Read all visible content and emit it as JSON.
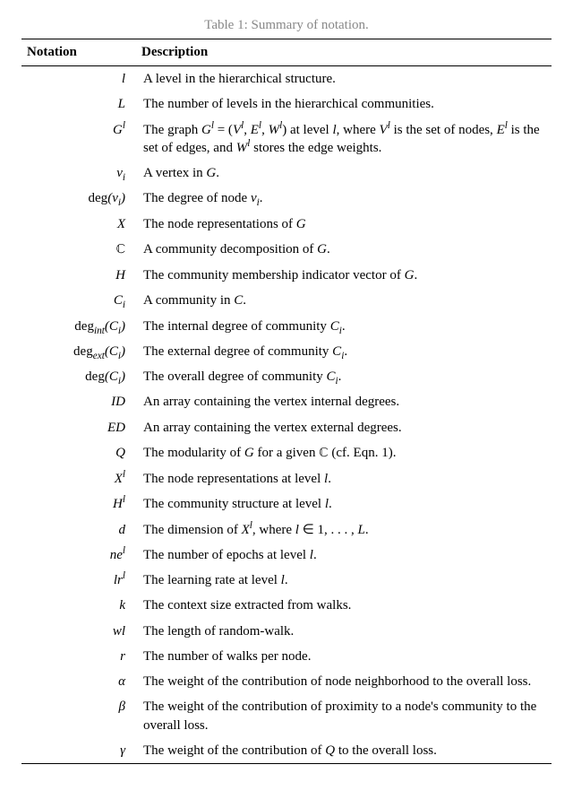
{
  "caption": "Table 1: Summary of notation.",
  "header": {
    "notation": "Notation",
    "description": "Description"
  },
  "rows": [
    {
      "n": "<span>l</span>",
      "d": "A level in the hierarchical structure."
    },
    {
      "n": "<span>L</span>",
      "d": "The number of levels in the hierarchical communities."
    },
    {
      "n": "<span>G<sup>l</sup></span>",
      "d": "The graph <i>G<sup>l</sup></i> = (<i>V<sup>l</sup></i>, <i>E<sup>l</sup></i>, <i>W<sup>l</sup></i>) at level <i>l</i>, where <i>V<sup>l</sup></i> is the set of nodes, <i>E<sup>l</sup></i> is the set of edges, and <i>W<sup>l</sup></i> stores the edge weights."
    },
    {
      "n": "<span>v<sub>i</sub></span>",
      "d": "A vertex in <i>G</i>."
    },
    {
      "n": "<span class=\"rm\">deg</span>(<span>v<sub>i</sub></span>)",
      "d": "The degree of node <i>v<sub>i</sub></i>."
    },
    {
      "n": "<span>X</span>",
      "d": "The node representations of <i>G</i>"
    },
    {
      "n": "<span class=\"bb\">ℂ</span>",
      "d": "A community decomposition of <i>G</i>."
    },
    {
      "n": "<span>H</span>",
      "d": "The community membership indicator vector of <i>G</i>."
    },
    {
      "n": "<span>C<sub>i</sub></span>",
      "d": "A community in <i>C</i>."
    },
    {
      "n": "<span class=\"rm\">deg</span><sub>int</sub>(<span>C<sub>i</sub></span>)",
      "d": "The internal degree of community <i>C<sub>i</sub></i>."
    },
    {
      "n": "<span class=\"rm\">deg</span><sub>ext</sub>(<span>C<sub>i</sub></span>)",
      "d": "The external degree of community <i>C<sub>i</sub></i>."
    },
    {
      "n": "<span class=\"rm\">deg</span>(<span>C<sub>i</sub></span>)",
      "d": "The overall degree of community <i>C<sub>i</sub></i>."
    },
    {
      "n": "<span>ID</span>",
      "d": "An array containing the vertex internal degrees."
    },
    {
      "n": "<span>ED</span>",
      "d": "An array containing the vertex external degrees."
    },
    {
      "n": "<span>Q</span>",
      "d": "The modularity of <i>G</i> for a given <span class=\"bb\">ℂ</span> (cf. Eqn. 1)."
    },
    {
      "n": "<span>X<sup>l</sup></span>",
      "d": "The node representations at level <i>l</i>."
    },
    {
      "n": "<span>H<sup>l</sup></span>",
      "d": "The community structure at level <i>l</i>."
    },
    {
      "n": "<span>d</span>",
      "d": "The dimension of <i>X<sup>l</sup></i>, where <i>l</i> ∈ 1, . . . , <i>L</i>."
    },
    {
      "n": "<span>ne<sup>l</sup></span>",
      "d": "The number of epochs at level <i>l</i>."
    },
    {
      "n": "<span>lr<sup>l</sup></span>",
      "d": "The learning rate at level <i>l</i>."
    },
    {
      "n": "<span>k</span>",
      "d": "The context size extracted from walks."
    },
    {
      "n": "<span>wl</span>",
      "d": "The length of random-walk."
    },
    {
      "n": "<span>r</span>",
      "d": "The number of walks per node."
    },
    {
      "n": "<span>α</span>",
      "d": "The weight of the contribution of node neighborhood to the overall loss."
    },
    {
      "n": "<span>β</span>",
      "d": "The weight of the contribution of proximity to a node's community to the overall loss."
    },
    {
      "n": "<span>γ</span>",
      "d": "The weight of the contribution of <i>Q</i> to the overall loss."
    }
  ]
}
